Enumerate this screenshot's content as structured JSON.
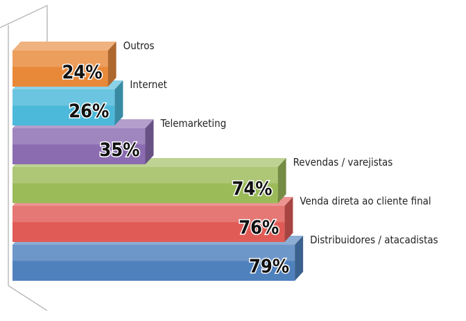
{
  "chart_data": {
    "type": "bar3d",
    "categories": [
      "Outros",
      "Internet",
      "Telemarketing",
      "Revendas / varejistas",
      "Venda direta ao cliente final",
      "Distribuidores / atacadistas"
    ],
    "values": [
      24,
      26,
      35,
      74,
      76,
      79
    ],
    "value_labels": [
      "24%",
      "26%",
      "35%",
      "74%",
      "76%",
      "79%"
    ],
    "colors": [
      "#e8893a",
      "#4cb9da",
      "#8b6cb1",
      "#9bbb59",
      "#e05b56",
      "#4f81bd"
    ]
  }
}
